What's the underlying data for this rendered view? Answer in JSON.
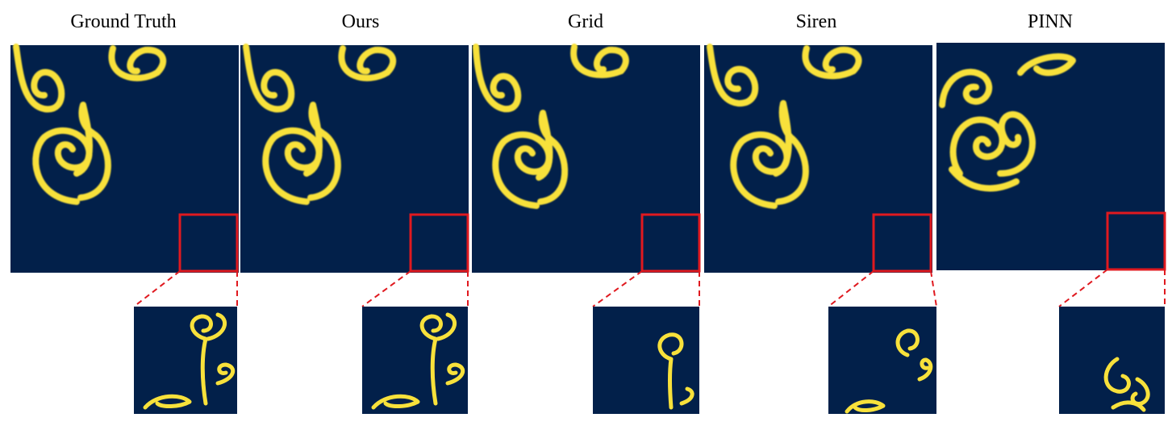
{
  "figure": {
    "colors": {
      "background": "#ffffff",
      "field": "#02204a",
      "dye": "#f8e13b",
      "dye_edge": "#d9c23a",
      "zoom_box": "#e0191f",
      "title_text": "#000000"
    },
    "panels": [
      {
        "title": "Ground Truth"
      },
      {
        "title": "Ours"
      },
      {
        "title": "Grid"
      },
      {
        "title": "Siren"
      },
      {
        "title": "PINN"
      }
    ]
  }
}
